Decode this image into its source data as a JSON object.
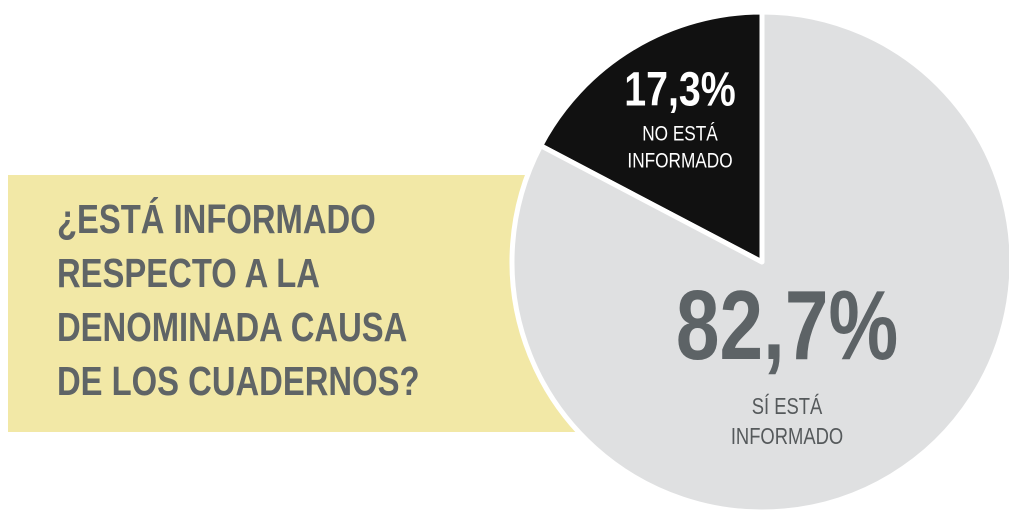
{
  "chart_data": {
    "type": "pie",
    "title": [
      "¿ESTÁ INFORMADO",
      "RESPECTO A LA",
      "DENOMINADA CAUSA",
      "DE LOS CUADERNOS?"
    ],
    "categories": [
      [
        "NO ESTÁ",
        "INFORMADO"
      ],
      [
        "SÍ ESTÁ",
        "INFORMADO"
      ]
    ],
    "values": [
      17.3,
      82.7
    ],
    "value_labels": [
      "17,3%",
      "82,7%"
    ],
    "colors": [
      "#111111",
      "#dfe0e1"
    ]
  }
}
